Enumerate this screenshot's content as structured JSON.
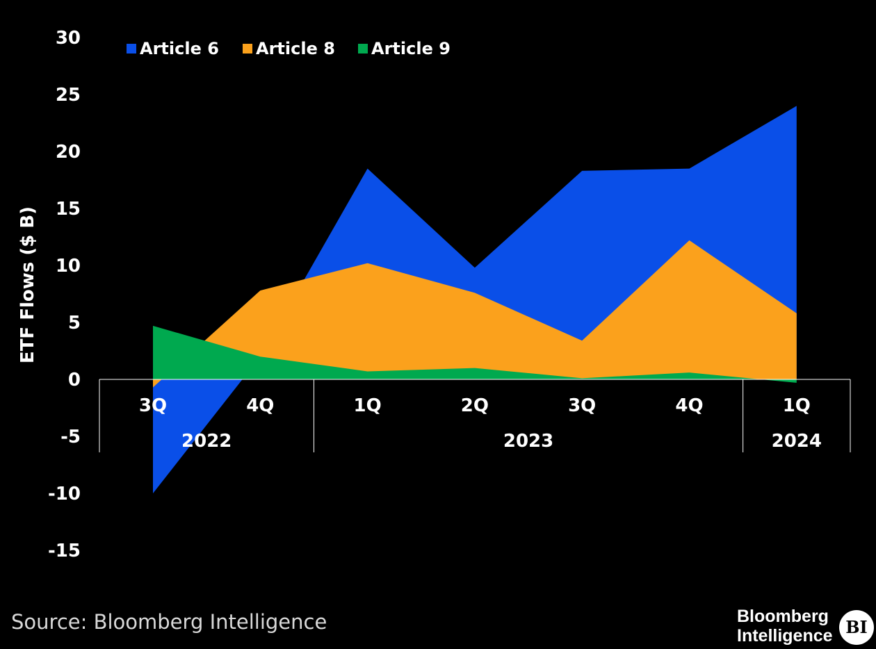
{
  "chart_data": {
    "type": "area",
    "title": "",
    "ylabel": "ETF Flows ($ B)",
    "xlabel": "",
    "ylim": [
      -15,
      30
    ],
    "yticks": [
      30,
      25,
      20,
      15,
      10,
      5,
      0,
      -5,
      -10,
      -15
    ],
    "categories": [
      "3Q",
      "4Q",
      "1Q",
      "2Q",
      "3Q",
      "4Q",
      "1Q"
    ],
    "year_groups": [
      {
        "label": "2022",
        "span": [
          0,
          1
        ]
      },
      {
        "label": "2023",
        "span": [
          2,
          5
        ]
      },
      {
        "label": "2024",
        "span": [
          6,
          6
        ]
      }
    ],
    "series": [
      {
        "name": "Article 6",
        "color": "#0a4fe8",
        "values": [
          -10,
          2,
          18.5,
          9.8,
          18.3,
          18.5,
          24
        ]
      },
      {
        "name": "Article 8",
        "color": "#fba11c",
        "values": [
          -0.7,
          7.8,
          10.2,
          7.6,
          3.4,
          12.2,
          5.8
        ]
      },
      {
        "name": "Article 9",
        "color": "#00a94f",
        "values": [
          4.7,
          2,
          0.7,
          1,
          0.1,
          0.6,
          -0.3
        ]
      }
    ]
  },
  "footer": {
    "source": "Source: Bloomberg Intelligence",
    "brand_line1": "Bloomberg",
    "brand_line2": "Intelligence",
    "logo_text": "BI"
  }
}
